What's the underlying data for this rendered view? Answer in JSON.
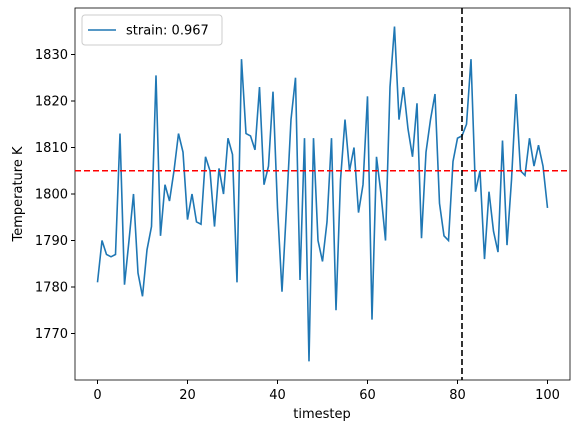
{
  "chart_data": {
    "type": "line",
    "x_label": "timestep",
    "y_label": "Temperature K",
    "x": [
      0,
      1,
      2,
      3,
      4,
      5,
      6,
      7,
      8,
      9,
      10,
      11,
      12,
      13,
      14,
      15,
      16,
      17,
      18,
      19,
      20,
      21,
      22,
      23,
      24,
      25,
      26,
      27,
      28,
      29,
      30,
      31,
      32,
      33,
      34,
      35,
      36,
      37,
      38,
      39,
      40,
      41,
      42,
      43,
      44,
      45,
      46,
      47,
      48,
      49,
      50,
      51,
      52,
      53,
      54,
      55,
      56,
      57,
      58,
      59,
      60,
      61,
      62,
      63,
      64,
      65,
      66,
      67,
      68,
      69,
      70,
      71,
      72,
      73,
      74,
      75,
      76,
      77,
      78,
      79,
      80,
      81,
      82,
      83,
      84,
      85,
      86,
      87,
      88,
      89,
      90,
      91,
      92,
      93,
      94,
      95,
      96,
      97,
      98,
      99,
      100
    ],
    "series": [
      {
        "name": "strain: 0.967",
        "color": "#1f77b4",
        "values": [
          1781,
          1790,
          1787,
          1786.5,
          1787,
          1813,
          1780.5,
          1790,
          1800,
          1783,
          1778,
          1788,
          1793,
          1825.5,
          1791,
          1802,
          1798.5,
          1805,
          1813,
          1809,
          1794.5,
          1800,
          1794,
          1793.5,
          1808,
          1805,
          1793,
          1805.5,
          1800,
          1812,
          1808.5,
          1781,
          1829,
          1813,
          1812.5,
          1809.5,
          1823,
          1802,
          1806,
          1822,
          1797,
          1779,
          1797,
          1816,
          1825,
          1781.5,
          1812,
          1764,
          1812,
          1790,
          1785.5,
          1794,
          1812,
          1775,
          1803,
          1816,
          1805,
          1810,
          1796,
          1802,
          1821,
          1773,
          1808,
          1800,
          1790,
          1823,
          1836,
          1816,
          1823,
          1814,
          1808,
          1819.5,
          1790.5,
          1809,
          1816,
          1821.5,
          1798,
          1791,
          1790,
          1807,
          1812,
          1812.5,
          1815,
          1829,
          1800.5,
          1805,
          1786,
          1800.5,
          1792,
          1787.5,
          1811.5,
          1789,
          1803,
          1821.5,
          1805,
          1804,
          1812,
          1806,
          1810.5,
          1806,
          1797
        ]
      }
    ],
    "hline": {
      "value": 1805,
      "color": "#ff0000"
    },
    "vline": {
      "value": 81,
      "color": "#000000"
    },
    "xlim": [
      -5,
      105
    ],
    "ylim": [
      1760,
      1840
    ],
    "xticks": [
      0,
      20,
      40,
      60,
      80,
      100
    ],
    "yticks": [
      1770,
      1780,
      1790,
      1800,
      1810,
      1820,
      1830
    ],
    "legend": "upper left"
  }
}
